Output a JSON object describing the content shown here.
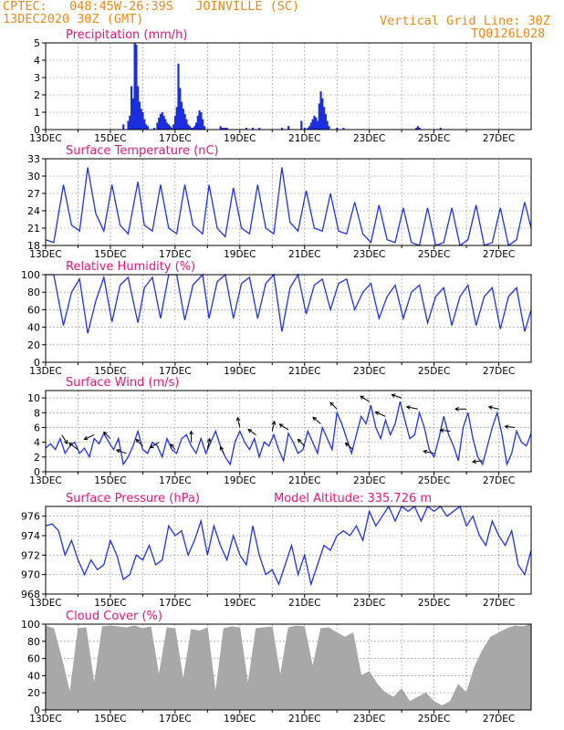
{
  "header": {
    "line1_left": "CPTEC:   048:45W-26:39S   JOINVILLE (SC)",
    "line2_left": "13DEC2020 30Z (GMT)",
    "line1_right": "Vertical Grid Line: 30Z",
    "line2_right": "TQ0126L028"
  },
  "x_ticks": [
    "13DEC",
    "15DEC",
    "17DEC",
    "19DEC",
    "21DEC",
    "23DEC",
    "25DEC",
    "27DEC"
  ],
  "x_tick_days": [
    0,
    2,
    4,
    6,
    8,
    10,
    12,
    14
  ],
  "colors": {
    "line": "#2233dd",
    "bar": "#1a2ee0",
    "title": "#e0187a",
    "cloud": "#a8a8a8",
    "header": "#e88a1a"
  },
  "chart_data": [
    {
      "type": "bar",
      "title": "Precipitation (mm/h)",
      "ylim": [
        0,
        5
      ],
      "yticks": [
        0,
        1,
        2,
        3,
        4,
        5
      ],
      "x_units": "days since 13DEC 00Z",
      "x": [
        2.4,
        2.55,
        2.6,
        2.65,
        2.7,
        2.75,
        2.8,
        2.85,
        2.9,
        2.95,
        3.0,
        3.05,
        3.1,
        3.15,
        3.35,
        3.45,
        3.5,
        3.55,
        3.6,
        3.65,
        3.7,
        3.75,
        3.8,
        3.85,
        3.9,
        3.95,
        4.0,
        4.05,
        4.1,
        4.15,
        4.2,
        4.25,
        4.3,
        4.35,
        4.4,
        4.45,
        4.5,
        4.55,
        4.6,
        4.65,
        4.7,
        4.75,
        4.8,
        4.85,
        4.9,
        5.4,
        5.45,
        5.5,
        5.55,
        5.6,
        6.2,
        6.4,
        6.6,
        7.3,
        7.5,
        7.9,
        8.0,
        8.1,
        8.15,
        8.2,
        8.25,
        8.3,
        8.35,
        8.4,
        8.45,
        8.5,
        8.55,
        8.6,
        8.65,
        8.7,
        8.75,
        9.0,
        9.2,
        11.45,
        11.5,
        11.55,
        12.2
      ],
      "values": [
        0.3,
        0.5,
        0.8,
        2.5,
        1.8,
        5.0,
        4.9,
        2.5,
        1.6,
        1.2,
        1.0,
        0.6,
        0.3,
        0.2,
        0.1,
        0.4,
        0.7,
        0.9,
        1.0,
        0.8,
        0.6,
        0.4,
        0.3,
        0.2,
        0.1,
        0.3,
        0.8,
        1.3,
        3.8,
        2.4,
        1.6,
        1.2,
        0.9,
        0.6,
        0.3,
        0.2,
        0.1,
        0.1,
        0.2,
        0.4,
        0.8,
        1.1,
        1.0,
        0.6,
        0.2,
        0.2,
        0.1,
        0.1,
        0.1,
        0.1,
        0.1,
        0.1,
        0.1,
        0.1,
        0.2,
        0.5,
        0.1,
        0.1,
        0.2,
        0.4,
        0.6,
        0.8,
        0.7,
        0.5,
        1.5,
        2.2,
        1.8,
        1.3,
        0.9,
        0.5,
        0.2,
        0.1,
        0.1,
        0.1,
        0.2,
        0.1,
        0.1
      ]
    },
    {
      "type": "line",
      "title": "Surface Temperature (nC)",
      "ylim": [
        18,
        33
      ],
      "yticks": [
        18,
        21,
        24,
        27,
        30,
        33
      ],
      "x_units": "days since 13DEC 00Z",
      "x": [
        0.0,
        0.25,
        0.55,
        0.8,
        1.05,
        1.3,
        1.55,
        1.8,
        2.05,
        2.3,
        2.55,
        2.85,
        3.05,
        3.3,
        3.55,
        3.8,
        4.05,
        4.3,
        4.55,
        4.85,
        5.05,
        5.3,
        5.55,
        5.8,
        6.05,
        6.3,
        6.55,
        6.8,
        7.05,
        7.3,
        7.55,
        7.8,
        8.05,
        8.3,
        8.55,
        8.8,
        9.05,
        9.3,
        9.55,
        9.8,
        10.05,
        10.3,
        10.55,
        10.8,
        11.05,
        11.3,
        11.55,
        11.8,
        12.05,
        12.3,
        12.55,
        12.8,
        13.05,
        13.3,
        13.55,
        13.8,
        14.05,
        14.3,
        14.55,
        14.8,
        15.0
      ],
      "values": [
        19.0,
        18.5,
        28.5,
        21.5,
        20.5,
        31.5,
        23.5,
        20.5,
        28.5,
        21.5,
        20.0,
        29.0,
        21.5,
        20.5,
        28.5,
        21.0,
        20.0,
        28.5,
        21.5,
        20.0,
        28.5,
        21.0,
        19.5,
        28.0,
        21.0,
        20.0,
        28.5,
        21.0,
        20.0,
        31.5,
        22.0,
        20.5,
        27.5,
        21.0,
        20.5,
        27.0,
        20.5,
        20.0,
        25.5,
        20.0,
        18.5,
        25.0,
        19.0,
        18.5,
        24.5,
        18.5,
        18.0,
        24.5,
        18.0,
        18.5,
        24.5,
        18.0,
        19.0,
        25.0,
        18.0,
        18.5,
        24.5,
        18.0,
        19.0,
        25.5,
        21.0
      ]
    },
    {
      "type": "line",
      "title": "Relative Humidity (%)",
      "ylim": [
        0,
        100
      ],
      "yticks": [
        0,
        20,
        40,
        60,
        80,
        100
      ],
      "x_units": "days since 13DEC 00Z",
      "x": [
        0.0,
        0.25,
        0.55,
        0.8,
        1.05,
        1.3,
        1.55,
        1.8,
        2.05,
        2.3,
        2.55,
        2.85,
        3.05,
        3.3,
        3.55,
        3.8,
        4.05,
        4.3,
        4.55,
        4.85,
        5.05,
        5.3,
        5.55,
        5.8,
        6.05,
        6.3,
        6.55,
        6.8,
        7.05,
        7.3,
        7.55,
        7.8,
        8.05,
        8.3,
        8.55,
        8.8,
        9.05,
        9.3,
        9.55,
        9.8,
        10.05,
        10.3,
        10.55,
        10.8,
        11.05,
        11.3,
        11.55,
        11.8,
        12.05,
        12.3,
        12.55,
        12.8,
        13.05,
        13.3,
        13.55,
        13.8,
        14.05,
        14.3,
        14.55,
        14.8,
        15.0
      ],
      "values": [
        100,
        100,
        42,
        80,
        95,
        33,
        70,
        97,
        46,
        88,
        97,
        45,
        85,
        97,
        50,
        100,
        100,
        48,
        88,
        100,
        50,
        92,
        100,
        50,
        90,
        97,
        50,
        90,
        100,
        35,
        85,
        100,
        55,
        88,
        95,
        60,
        90,
        95,
        60,
        80,
        90,
        50,
        75,
        88,
        50,
        80,
        88,
        45,
        75,
        85,
        42,
        75,
        88,
        42,
        75,
        85,
        38,
        75,
        85,
        35,
        60
      ]
    },
    {
      "type": "line",
      "title": "Surface Wind (m/s)",
      "ylim": [
        0,
        11
      ],
      "yticks": [
        0,
        2,
        4,
        6,
        8,
        10
      ],
      "x_units": "days since 13DEC 00Z",
      "x": [
        0.0,
        0.15,
        0.3,
        0.45,
        0.6,
        0.75,
        0.9,
        1.05,
        1.2,
        1.35,
        1.5,
        1.65,
        1.8,
        1.95,
        2.1,
        2.25,
        2.4,
        2.55,
        2.7,
        2.85,
        3.0,
        3.15,
        3.3,
        3.45,
        3.6,
        3.75,
        3.9,
        4.05,
        4.2,
        4.35,
        4.5,
        4.65,
        4.8,
        4.95,
        5.1,
        5.25,
        5.4,
        5.55,
        5.7,
        5.85,
        6.0,
        6.15,
        6.3,
        6.45,
        6.6,
        6.75,
        6.9,
        7.05,
        7.2,
        7.35,
        7.5,
        7.65,
        7.8,
        7.95,
        8.1,
        8.25,
        8.4,
        8.55,
        8.7,
        8.85,
        9.0,
        9.15,
        9.3,
        9.45,
        9.6,
        9.75,
        9.9,
        10.05,
        10.2,
        10.35,
        10.5,
        10.65,
        10.8,
        10.95,
        11.1,
        11.25,
        11.4,
        11.55,
        11.7,
        11.85,
        12.0,
        12.15,
        12.3,
        12.45,
        12.6,
        12.75,
        12.9,
        13.05,
        13.2,
        13.35,
        13.5,
        13.65,
        13.8,
        13.95,
        14.1,
        14.25,
        14.4,
        14.55,
        14.7,
        14.85,
        15.0
      ],
      "values": [
        3.2,
        3.8,
        3.0,
        4.5,
        2.5,
        3.5,
        4.0,
        2.5,
        3.2,
        2.0,
        4.5,
        3.8,
        5.2,
        4.0,
        3.0,
        4.5,
        1.0,
        2.0,
        3.5,
        5.5,
        3.0,
        2.5,
        4.0,
        3.5,
        2.0,
        4.5,
        3.0,
        2.5,
        4.5,
        5.0,
        3.5,
        2.5,
        4.5,
        2.5,
        4.0,
        5.5,
        3.5,
        2.0,
        1.0,
        4.0,
        5.5,
        4.0,
        3.0,
        4.5,
        2.0,
        4.0,
        3.5,
        5.0,
        3.0,
        1.5,
        5.2,
        4.0,
        2.5,
        3.0,
        5.5,
        4.0,
        2.5,
        6.0,
        4.5,
        3.0,
        8.0,
        6.5,
        4.5,
        2.5,
        5.0,
        7.5,
        6.5,
        9.0,
        6.0,
        4.5,
        7.0,
        5.0,
        6.5,
        9.5,
        7.0,
        4.5,
        5.0,
        8.0,
        6.0,
        3.0,
        2.0,
        4.5,
        7.5,
        5.0,
        3.5,
        1.5,
        6.0,
        8.0,
        4.5,
        2.0,
        1.0,
        3.5,
        6.0,
        8.0,
        5.0,
        1.0,
        2.5,
        5.5,
        4.0,
        3.5,
        5.2
      ],
      "arrows_note": "wind direction vectors drawn near data line",
      "arrow_days": [
        0.5,
        1.0,
        1.5,
        2.0,
        2.5,
        3.0,
        3.5,
        4.0,
        4.5,
        5.0,
        5.5,
        6.0,
        6.5,
        7.0,
        7.5,
        8.0,
        8.5,
        9.0,
        9.5,
        10.0,
        10.5,
        11.0,
        11.5,
        12.0,
        12.5,
        13.0,
        13.5,
        14.0,
        14.5
      ],
      "arrow_u": [
        0.5,
        -0.8,
        -0.9,
        -0.6,
        -0.9,
        -0.6,
        -0.8,
        -0.4,
        0.0,
        0.2,
        -0.3,
        -0.2,
        -0.7,
        0.2,
        -0.8,
        -0.6,
        -0.7,
        -0.6,
        -0.7,
        -0.8,
        -0.9,
        -0.9,
        -1.0,
        -0.95,
        -0.9,
        -1.0,
        -0.9,
        -0.9,
        -0.9
      ],
      "arrow_v": [
        -0.8,
        0.6,
        -0.4,
        0.6,
        0.3,
        0.6,
        -0.5,
        0.5,
        1.0,
        1.0,
        0.6,
        0.9,
        0.5,
        0.9,
        0.5,
        0.6,
        0.6,
        0.6,
        0.6,
        0.5,
        0.4,
        0.3,
        0.2,
        0.2,
        0.1,
        0.0,
        -0.1,
        0.2,
        0.1
      ]
    },
    {
      "type": "line",
      "title": "Surface Pressure (hPa)",
      "annotation": "Model Altitude: 335.726 m",
      "ylim": [
        968,
        977
      ],
      "yticks": [
        968,
        970,
        972,
        974,
        976
      ],
      "x_units": "days since 13DEC 00Z",
      "x": [
        0.0,
        0.2,
        0.4,
        0.6,
        0.8,
        1.0,
        1.2,
        1.4,
        1.6,
        1.8,
        2.0,
        2.2,
        2.4,
        2.6,
        2.8,
        3.0,
        3.2,
        3.4,
        3.6,
        3.8,
        4.0,
        4.2,
        4.4,
        4.6,
        4.8,
        5.0,
        5.2,
        5.4,
        5.6,
        5.8,
        6.0,
        6.2,
        6.4,
        6.6,
        6.8,
        7.0,
        7.2,
        7.4,
        7.6,
        7.8,
        8.0,
        8.2,
        8.4,
        8.6,
        8.8,
        9.0,
        9.2,
        9.4,
        9.6,
        9.8,
        10.0,
        10.2,
        10.4,
        10.6,
        10.8,
        11.0,
        11.2,
        11.4,
        11.6,
        11.8,
        12.0,
        12.2,
        12.4,
        12.6,
        12.8,
        13.0,
        13.2,
        13.4,
        13.6,
        13.8,
        14.0,
        14.2,
        14.4,
        14.6,
        14.8,
        15.0
      ],
      "values": [
        975.0,
        975.2,
        974.5,
        972.0,
        973.5,
        971.5,
        970.0,
        971.5,
        970.5,
        971.0,
        973.5,
        972.0,
        969.5,
        970.0,
        972.0,
        971.5,
        973.0,
        971.0,
        971.5,
        975.0,
        974.0,
        974.5,
        972.0,
        973.5,
        975.5,
        972.0,
        975.0,
        973.0,
        971.5,
        974.0,
        972.0,
        971.0,
        975.0,
        972.0,
        970.0,
        970.5,
        969.0,
        971.0,
        973.0,
        970.0,
        972.0,
        969.0,
        971.0,
        973.0,
        972.5,
        974.0,
        974.5,
        974.0,
        975.0,
        973.5,
        976.5,
        975.0,
        976.0,
        977.0,
        975.5,
        977.0,
        976.5,
        977.0,
        975.5,
        977.0,
        976.5,
        977.0,
        976.0,
        976.5,
        977.0,
        975.0,
        976.0,
        974.0,
        973.0,
        975.5,
        974.0,
        973.0,
        974.5,
        971.0,
        970.0,
        972.5
      ]
    },
    {
      "type": "area",
      "title": "Cloud Cover (%)",
      "ylim": [
        0,
        100
      ],
      "yticks": [
        0,
        20,
        40,
        60,
        80,
        100
      ],
      "x_units": "days since 13DEC 00Z",
      "x": [
        0.0,
        0.25,
        0.5,
        0.75,
        1.0,
        1.25,
        1.5,
        1.75,
        2.0,
        2.25,
        2.5,
        2.75,
        3.0,
        3.25,
        3.5,
        3.75,
        4.0,
        4.25,
        4.5,
        4.75,
        5.0,
        5.25,
        5.5,
        5.75,
        6.0,
        6.25,
        6.5,
        6.75,
        7.0,
        7.25,
        7.5,
        7.75,
        8.0,
        8.25,
        8.5,
        8.75,
        9.0,
        9.25,
        9.5,
        9.75,
        10.0,
        10.25,
        10.5,
        10.75,
        11.0,
        11.25,
        11.5,
        11.75,
        12.0,
        12.25,
        12.5,
        12.75,
        13.0,
        13.25,
        13.5,
        13.75,
        14.0,
        14.25,
        14.5,
        14.75,
        15.0
      ],
      "values": [
        98,
        95,
        60,
        20,
        95,
        96,
        30,
        97,
        98,
        97,
        96,
        98,
        95,
        97,
        40,
        96,
        95,
        35,
        94,
        92,
        96,
        20,
        95,
        97,
        96,
        30,
        95,
        96,
        97,
        40,
        96,
        98,
        97,
        50,
        95,
        96,
        90,
        85,
        90,
        40,
        45,
        30,
        20,
        15,
        25,
        10,
        15,
        20,
        10,
        5,
        10,
        30,
        20,
        50,
        70,
        85,
        90,
        95,
        98,
        97,
        100
      ]
    }
  ]
}
